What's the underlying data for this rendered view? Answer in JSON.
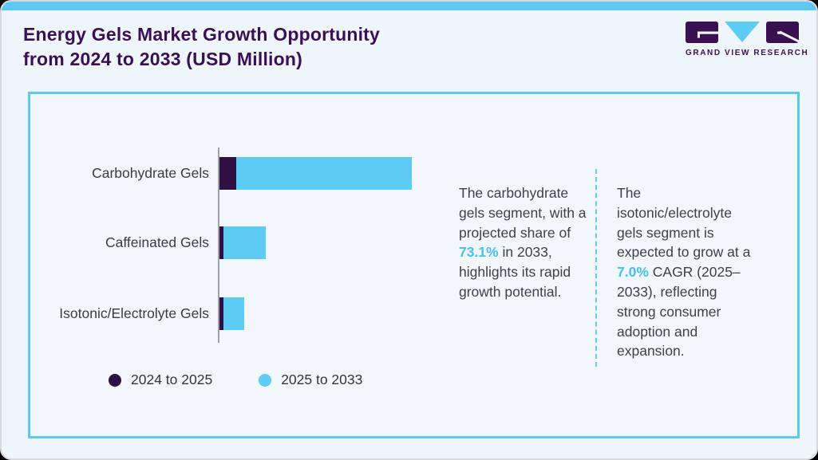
{
  "page": {
    "title_line1": "Energy Gels Market Growth Opportunity",
    "title_line2": "from 2024 to 2033 (USD Million)"
  },
  "logo": {
    "name": "Grand View Research",
    "wordmark": "GRAND VIEW RESEARCH"
  },
  "chart_data": {
    "type": "bar",
    "orientation": "horizontal",
    "stacked": true,
    "title": "Energy Gels Market Growth Opportunity from 2024 to 2033 (USD Million)",
    "categories": [
      "Carbohydrate Gels",
      "Caffeinated Gels",
      "Isotonic/Electrolyte Gels"
    ],
    "series": [
      {
        "name": "2024 to 2025",
        "color": "#2e1045",
        "values": [
          21,
          5,
          5
        ]
      },
      {
        "name": "2025 to 2033",
        "color": "#5ecbf4",
        "values": [
          220,
          53,
          26
        ]
      }
    ],
    "units": "relative length (value axis not labeled in source)",
    "xlim": [
      0,
      245
    ],
    "grid": false,
    "legend_position": "bottom"
  },
  "legend": {
    "items": [
      {
        "label": "2024 to 2025",
        "color": "#2e1045"
      },
      {
        "label": "2025 to 2033",
        "color": "#5ecbf4"
      }
    ]
  },
  "callouts": {
    "left": {
      "pre": "The carbohydrate gels segment, with a projected share of ",
      "highlight": "73.1%",
      "post": " in 2033, highlights its rapid growth potential."
    },
    "right": {
      "pre": "The isotonic/electrolyte gels segment is expected to grow at a ",
      "highlight": "7.0%",
      "post": " CAGR (2025–2033), reflecting strong consumer adoption and expansion."
    }
  },
  "colors": {
    "accent_blue": "#5ecbf4",
    "dark_purple": "#2e1045",
    "title_purple": "#3b0f55",
    "highlight_blue": "#45c1f0",
    "frame_border": "#5fc8f2",
    "background": "#f1f7fa"
  }
}
